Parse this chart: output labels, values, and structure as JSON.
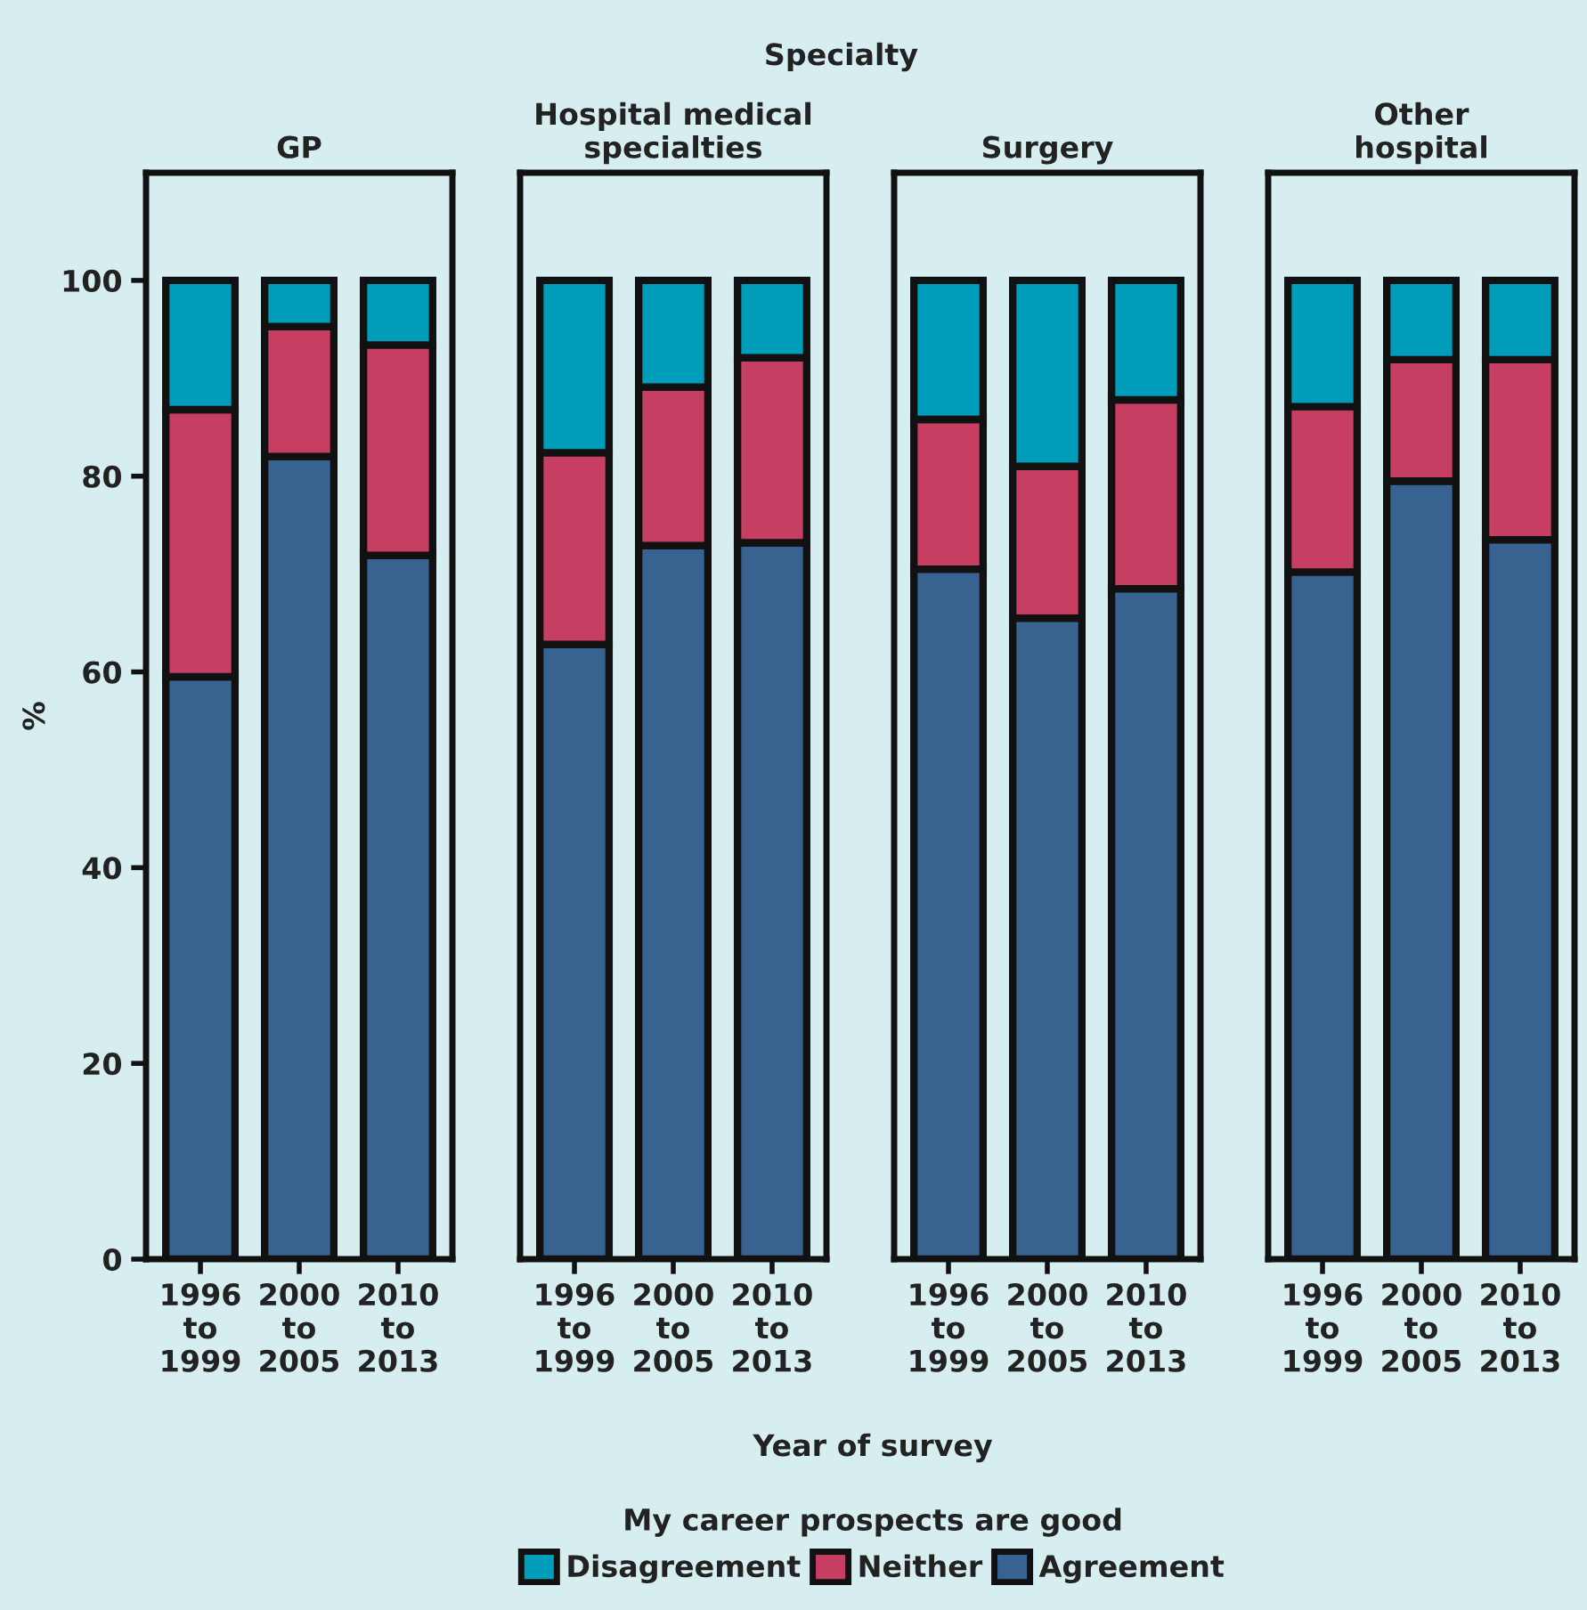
{
  "chart_data": [
    {
      "type": "bar",
      "stacked": true,
      "title": "GP",
      "ylabel": "%",
      "annotations": [
        "Specialty"
      ],
      "legend_title": "My career prospects are good",
      "legend": "bottom",
      "categories": [
        "1996\nto\n1999",
        "2000\nto\n2005",
        "2010\nto\n2013"
      ],
      "ylim": [
        0,
        111
      ],
      "yticks": [
        0,
        20,
        40,
        60,
        80,
        100
      ],
      "series": [
        {
          "name": "Agreement",
          "color": "#38628f",
          "values": [
            59.5,
            82.0,
            71.9
          ]
        },
        {
          "name": "Neither",
          "color": "#c63f63",
          "values": [
            27.3,
            13.3,
            21.5
          ]
        },
        {
          "name": "Disagreement",
          "color": "#009dba",
          "values": [
            13.2,
            4.7,
            6.6
          ]
        }
      ]
    },
    {
      "type": "bar",
      "stacked": true,
      "title": "Hospital medical\nspecialties",
      "tick_labels": "x",
      "categories": [
        "1996\nto\n1999",
        "2000\nto\n2005",
        "2010\nto\n2013"
      ],
      "ylim": [
        0,
        111
      ],
      "series": [
        {
          "color": "#38628f",
          "values": [
            62.8,
            72.9,
            73.2
          ]
        },
        {
          "color": "#c63f63",
          "values": [
            19.6,
            16.2,
            18.9
          ]
        },
        {
          "color": "#009dba",
          "values": [
            17.6,
            10.9,
            7.9
          ]
        }
      ]
    },
    {
      "type": "bar",
      "stacked": true,
      "title": "Surgery",
      "xlabel": "Year of survey",
      "tick_labels": "x",
      "categories": [
        "1996\nto\n1999",
        "2000\nto\n2005",
        "2010\nto\n2013"
      ],
      "ylim": [
        0,
        111
      ],
      "series": [
        {
          "color": "#38628f",
          "values": [
            70.5,
            65.5,
            68.5
          ]
        },
        {
          "color": "#c63f63",
          "values": [
            15.3,
            15.5,
            19.3
          ]
        },
        {
          "color": "#009dba",
          "values": [
            14.2,
            19.0,
            12.2
          ]
        }
      ]
    },
    {
      "type": "bar",
      "stacked": true,
      "title": "Other\nhospital",
      "tick_labels": "x",
      "categories": [
        "1996\nto\n1999",
        "2000\nto\n2005",
        "2010\nto\n2013"
      ],
      "ylim": [
        0,
        111
      ],
      "series": [
        {
          "color": "#38628f",
          "values": [
            70.2,
            79.5,
            73.5
          ]
        },
        {
          "color": "#c63f63",
          "values": [
            16.9,
            12.4,
            18.4
          ]
        },
        {
          "color": "#009dba",
          "values": [
            12.9,
            8.1,
            8.1
          ]
        }
      ]
    }
  ]
}
